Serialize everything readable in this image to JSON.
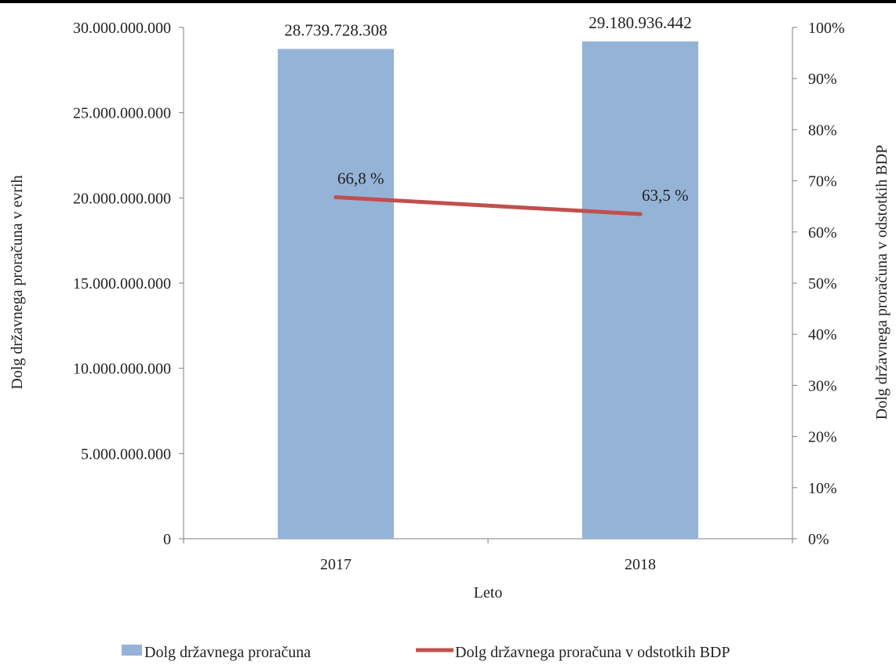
{
  "chart_data": {
    "type": "bar",
    "categories": [
      "2017",
      "2018"
    ],
    "xlabel": "Leto",
    "ylabel": "Dolg državnega proračuna v evrih",
    "y2label": "Dolg državnega proračuna v odstotkih BDP",
    "ylim": [
      0,
      30000000000
    ],
    "y2lim": [
      0,
      100
    ],
    "yticks": [
      "0",
      "5.000.000.000",
      "10.000.000.000",
      "15.000.000.000",
      "20.000.000.000",
      "25.000.000.000",
      "30.000.000.000"
    ],
    "y2ticks": [
      "0%",
      "10%",
      "20%",
      "30%",
      "40%",
      "50%",
      "60%",
      "70%",
      "80%",
      "90%",
      "100%"
    ],
    "grid": false,
    "legend_position": "bottom",
    "series": [
      {
        "name": "Dolg državnega proračuna",
        "type": "bar",
        "axis": "left",
        "color": "#95B3D7",
        "values": [
          28739728308,
          29180936442
        ],
        "labels": [
          "28.739.728.308",
          "29.180.936.442"
        ]
      },
      {
        "name": "Dolg državnega proračuna v odstotkih BDP",
        "type": "line",
        "axis": "right",
        "color": "#C0504D",
        "values": [
          66.8,
          63.5
        ],
        "labels": [
          "66,8 %",
          "63,5 %"
        ]
      }
    ]
  }
}
